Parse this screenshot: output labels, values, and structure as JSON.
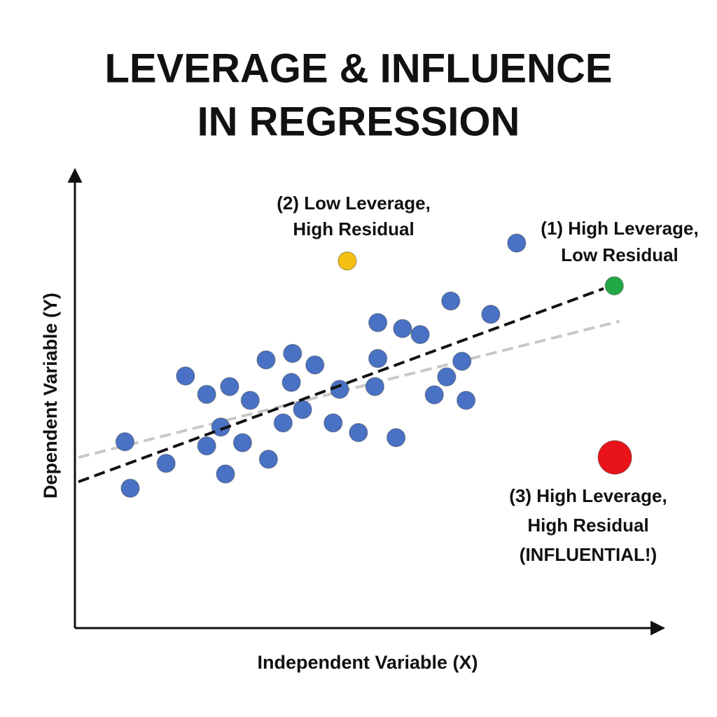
{
  "chart_data": {
    "type": "scatter",
    "title": [
      "LEVERAGE & INFLUENCE",
      "IN REGRESSION"
    ],
    "x_label": "Independent Variable (X)",
    "y_label": "Dependent Variable (Y)",
    "xlim": [
      0,
      100
    ],
    "ylim": [
      0,
      100
    ],
    "series": [
      {
        "color": "#4a72c4",
        "size": 13,
        "x": [
          8.5,
          9.4,
          15.5,
          18.8,
          22.4,
          22.4,
          24.8,
          25.6,
          26.3,
          28.5,
          29.8,
          32.5,
          32.9,
          35.4,
          36.8,
          37.0,
          38.7,
          40.8,
          43.9,
          45.0,
          48.2,
          51.0,
          51.5,
          51.5,
          54.6,
          55.7,
          58.7,
          61.1,
          63.2,
          63.9,
          65.8,
          66.5,
          70.7,
          75.1
        ],
        "values": [
          40.5,
          30.4,
          35.8,
          54.8,
          50.8,
          39.6,
          43.7,
          33.5,
          52.5,
          40.3,
          49.5,
          58.3,
          36.7,
          44.6,
          53.4,
          59.7,
          47.5,
          57.2,
          44.6,
          51.9,
          42.5,
          52.5,
          58.6,
          66.4,
          41.4,
          65.1,
          63.8,
          50.7,
          54.6,
          71.1,
          58.0,
          49.5,
          68.2,
          83.7
        ]
      },
      {
        "color": "#f5c012",
        "size": 13,
        "x": [
          46.3
        ],
        "values": [
          79.8
        ]
      },
      {
        "color": "#22a844",
        "size": 13,
        "x": [
          91.7
        ],
        "values": [
          74.4
        ]
      },
      {
        "color": "#e8141a",
        "size": 24,
        "x": [
          91.8
        ],
        "values": [
          37.1
        ]
      }
    ],
    "lines": [
      {
        "color": "#c8c8c8",
        "dash": true,
        "x": [
          0.6,
          92.6
        ],
        "values": [
          37.1,
          66.7
        ]
      },
      {
        "color": "#111111",
        "dash": true,
        "x": [
          0.6,
          89.9
        ],
        "values": [
          31.8,
          73.8
        ]
      }
    ],
    "annotations": [
      [
        "(1) High Leverage,",
        "Low Residual"
      ],
      [
        "(2) Low Leverage,",
        "High Residual"
      ],
      [
        "(3) High Leverage,",
        "High Residual",
        "(INFLUENTIAL!)"
      ]
    ]
  }
}
